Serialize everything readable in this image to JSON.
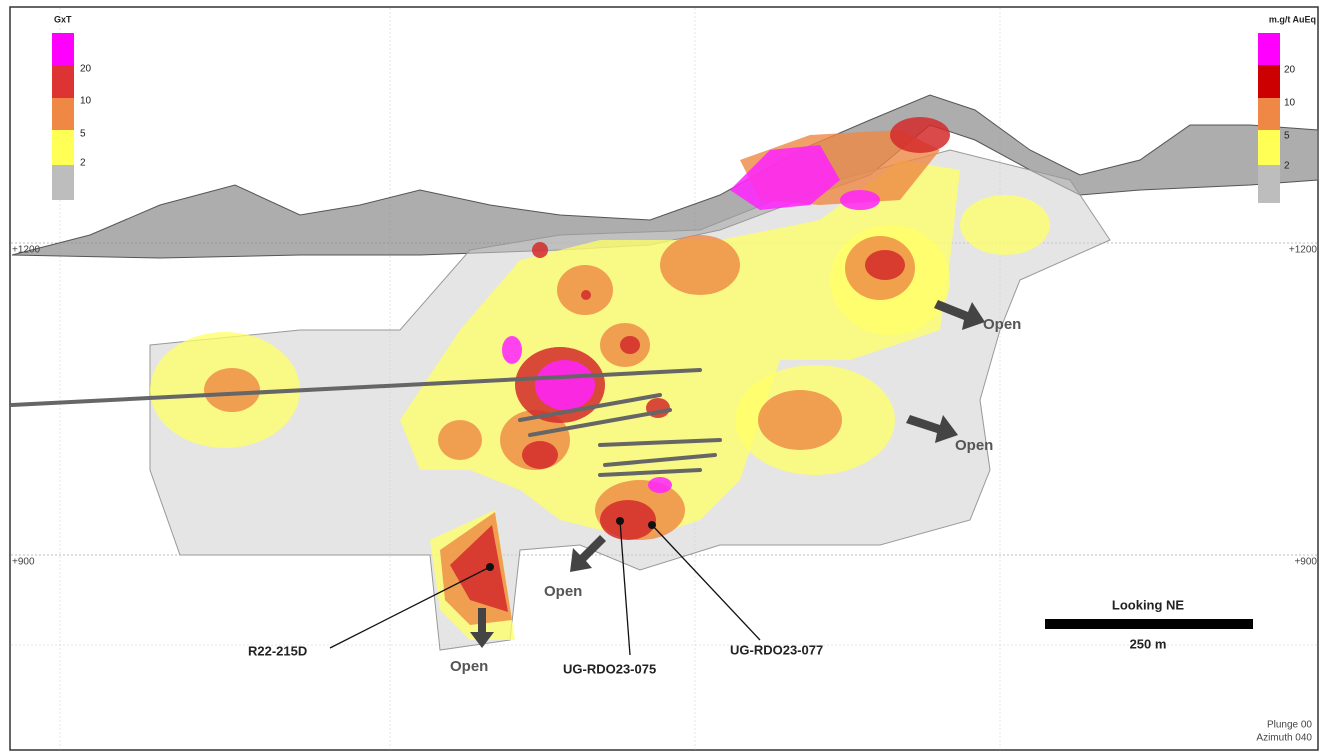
{
  "left_legend": {
    "title": "GxT",
    "labels": [
      20,
      10,
      5,
      2
    ]
  },
  "right_legend": {
    "title": "m.g/t AuEq",
    "labels": [
      20,
      10,
      5,
      2
    ]
  },
  "elevations": {
    "left": [
      "+1200",
      "+900"
    ],
    "right": [
      "+1200",
      "+900"
    ]
  },
  "open_labels": [
    "Open",
    "Open",
    "Open",
    "Open"
  ],
  "drill_holes": [
    "R22-215D",
    "UG-RDO23-075",
    "UG-RDO23-077"
  ],
  "scale": {
    "direction": "Looking NE",
    "length": "250 m"
  },
  "view": {
    "plunge": "Plunge 00",
    "azimuth": "Azimuth 040"
  }
}
